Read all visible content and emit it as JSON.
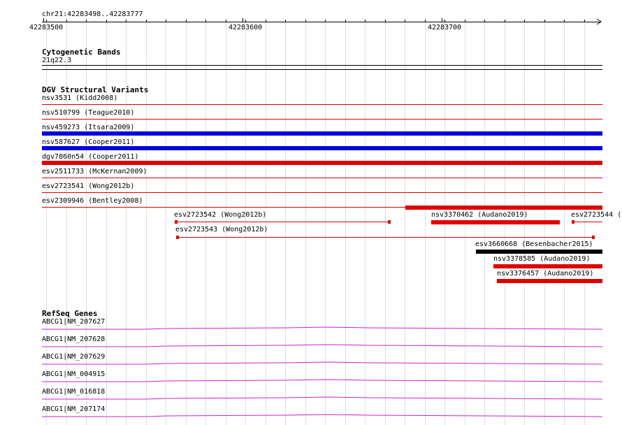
{
  "ruler": {
    "location": "chr21:42283498..42283777",
    "tick_labels": [
      "42283500",
      "42283600",
      "42283700"
    ]
  },
  "cytoband": {
    "title": "Cytogenetic Bands",
    "band": "21q22.3"
  },
  "dgv": {
    "title": "DGV Structural Variants",
    "full_rows": [
      {
        "label": "nsv3531 (Kidd2008)",
        "color": "#e00000",
        "style": "thin"
      },
      {
        "label": "nsv510799 (Teague2010)",
        "color": "#e00000",
        "style": "thin"
      },
      {
        "label": "nsv459273 (Itsara2009)",
        "color": "#0000e0",
        "style": "thick"
      },
      {
        "label": "nsv587627 (Cooper2011)",
        "color": "#0000e0",
        "style": "thick"
      },
      {
        "label": "dgv7860n54 (Cooper2011)",
        "color": "#e00000",
        "style": "thick"
      },
      {
        "label": "esv2511733 (McKernan2009)",
        "color": "#e00000",
        "style": "thin"
      },
      {
        "label": "esv2723541 (Wong2012b)",
        "color": "#e00000",
        "style": "thin"
      },
      {
        "label": "esv2309946 (Bentley2008)",
        "color": "#e00000",
        "style": "thin"
      }
    ],
    "partial_features": [
      {
        "label": "esv2723542 (Wong2012b)",
        "color": "#e00000",
        "style": "thin"
      },
      {
        "label": "nsv3370462 (Audano2019)",
        "color": "#e00000",
        "style": "thick"
      },
      {
        "label": "esv2723544 (",
        "color": "#e00000",
        "style": "thin"
      },
      {
        "label": "esv2723543 (Wong2012b)",
        "color": "#e00000",
        "style": "thin"
      },
      {
        "label": "esv3660668 (Besenbacher2015)",
        "color": "#000000",
        "style": "thick"
      },
      {
        "label": "nsv3378585 (Audano2019)",
        "color": "#e00000",
        "style": "thick"
      },
      {
        "label": "nsv3376457 (Audano2019)",
        "color": "#e00000",
        "style": "thick"
      }
    ]
  },
  "refseq": {
    "title": "RefSeq Genes",
    "color": "#cc22cc",
    "genes": [
      {
        "label": "ABCG1|NM_207627"
      },
      {
        "label": "ABCG1|NM_207628"
      },
      {
        "label": "ABCG1|NM_207629"
      },
      {
        "label": "ABCG1|NM_004915"
      },
      {
        "label": "ABCG1|NM_016818"
      },
      {
        "label": "ABCG1|NM_207174"
      }
    ]
  }
}
